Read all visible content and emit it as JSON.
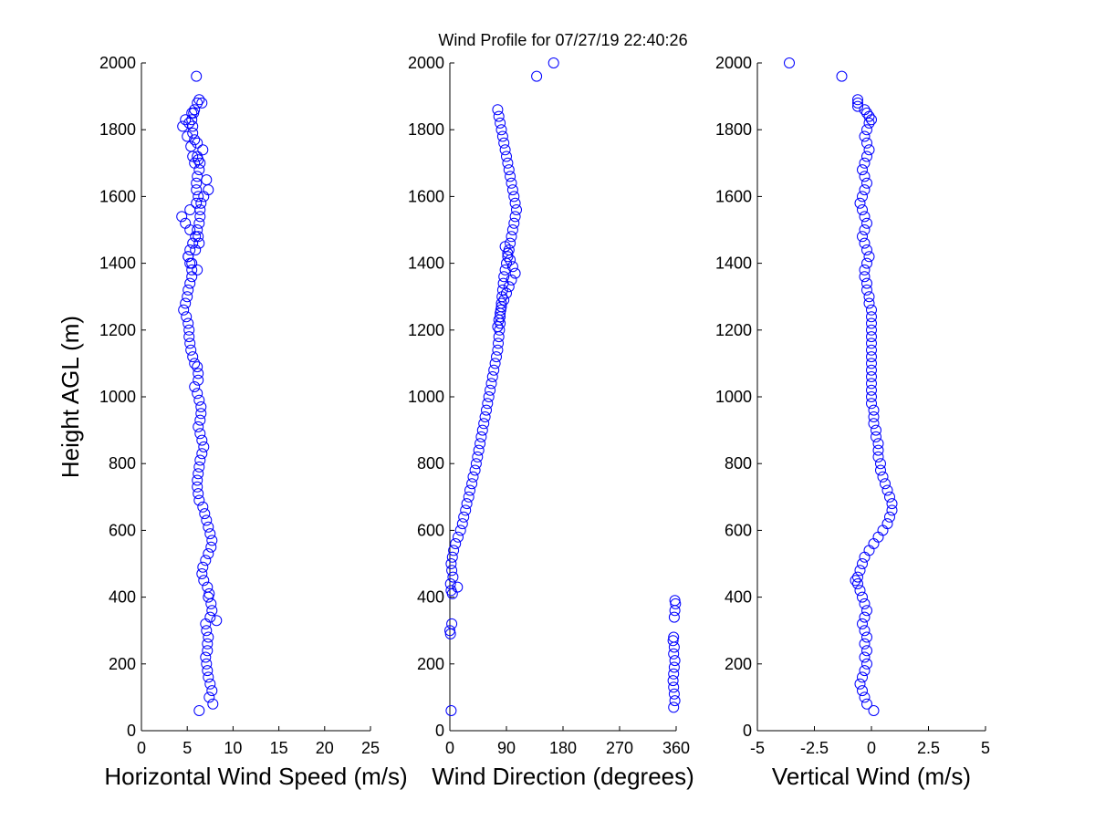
{
  "title": "Wind Profile for  07/27/19 22:40:26",
  "chart_data": [
    {
      "type": "scatter",
      "xlabel": "Horizontal Wind Speed (m/s)",
      "ylabel": "Height AGL (m)",
      "xlim": [
        0,
        25
      ],
      "ylim": [
        0,
        2000
      ],
      "xticks": [
        0,
        5,
        10,
        15,
        20,
        25
      ],
      "xtick_labels": [
        "0",
        "5",
        "10",
        "15",
        "20",
        "25"
      ],
      "yticks": [
        0,
        200,
        400,
        600,
        800,
        1000,
        1200,
        1400,
        1600,
        1800,
        2000
      ],
      "ytick_labels": [
        "0",
        "200",
        "400",
        "600",
        "800",
        "1000",
        "1200",
        "1400",
        "1600",
        "1800",
        "2000"
      ],
      "marker_color": "#0000ff",
      "series": [
        {
          "name": "horizontal_wind_speed",
          "x": [
            6.3,
            7.8,
            7.4,
            7.7,
            7.5,
            7.3,
            7.2,
            7.1,
            7.0,
            7.2,
            7.2,
            7.3,
            7.1,
            7.0,
            7.5,
            7.7,
            8.2,
            7.6,
            7.3,
            7.4,
            7.2,
            6.8,
            6.6,
            6.7,
            7.0,
            7.3,
            7.6,
            7.7,
            7.5,
            7.3,
            7.1,
            6.9,
            6.7,
            6.3,
            6.2,
            6.1,
            6.1,
            6.2,
            6.3,
            6.4,
            6.6,
            6.8,
            6.6,
            6.4,
            6.2,
            6.4,
            6.5,
            6.5,
            6.3,
            6.1,
            5.8,
            6.2,
            6.2,
            6.1,
            5.8,
            5.6,
            5.4,
            5.3,
            5.2,
            5.2,
            5.1,
            4.9,
            4.6,
            4.8,
            5.0,
            5.1,
            5.3,
            5.5,
            5.5,
            5.3,
            5.1,
            5.3,
            5.6,
            5.9,
            6.1,
            6.3,
            6.4,
            6.4,
            6.5,
            6.2,
            6.0,
            6.0,
            6.1,
            6.3,
            6.4,
            6.2,
            6.1,
            6.7,
            6.1,
            5.8,
            5.6,
            5.6,
            5.5,
            5.7,
            5.8,
            6.1,
            6.3,
            6.0,
            5.8,
            5.6,
            5.4,
            5.2,
            5.0,
            4.5,
            4.8,
            5.5,
            6.6,
            7.1,
            7.3,
            6.8,
            6.0,
            5.3,
            4.4,
            4.8,
            5.3,
            6.2,
            6.3,
            5.9,
            5.1,
            5.5,
            6.1
          ],
          "y": [
            60,
            80,
            100,
            120,
            140,
            160,
            180,
            200,
            220,
            240,
            260,
            280,
            300,
            320,
            340,
            360,
            330,
            380,
            400,
            410,
            430,
            450,
            470,
            490,
            510,
            530,
            550,
            570,
            590,
            610,
            630,
            650,
            670,
            690,
            710,
            730,
            750,
            770,
            790,
            810,
            830,
            850,
            870,
            890,
            910,
            930,
            950,
            970,
            990,
            1010,
            1030,
            1050,
            1070,
            1090,
            1100,
            1120,
            1140,
            1160,
            1180,
            1200,
            1220,
            1240,
            1260,
            1280,
            1300,
            1320,
            1340,
            1360,
            1380,
            1400,
            1420,
            1440,
            1460,
            1480,
            1500,
            1520,
            1540,
            1560,
            1580,
            1600,
            1620,
            1640,
            1660,
            1680,
            1700,
            1710,
            1720,
            1740,
            1760,
            1770,
            1790,
            1810,
            1830,
            1850,
            1860,
            1880,
            1890,
            1960,
            1700,
            1720,
            1750,
            1820,
            1780,
            1810,
            1830,
            1850,
            1880,
            1650,
            1620,
            1600,
            1580,
            1560,
            1540,
            1520,
            1500,
            1480,
            1460,
            1440,
            1420,
            1400,
            1380
          ]
        }
      ]
    },
    {
      "type": "scatter",
      "xlabel": "Wind Direction (degrees)",
      "ylabel": "",
      "xlim": [
        0,
        360
      ],
      "ylim": [
        0,
        2000
      ],
      "xticks": [
        0,
        90,
        180,
        270,
        360
      ],
      "xtick_labels": [
        "0",
        "90",
        "180",
        "270",
        "360"
      ],
      "yticks": [
        0,
        200,
        400,
        600,
        800,
        1000,
        1200,
        1400,
        1600,
        1800,
        2000
      ],
      "ytick_labels": [
        "0",
        "200",
        "400",
        "600",
        "800",
        "1000",
        "1200",
        "1400",
        "1600",
        "1800",
        "2000"
      ],
      "marker_color": "#0000ff",
      "series": [
        {
          "name": "wind_direction",
          "x": [
            2,
            1,
            0,
            3,
            4,
            2,
            1,
            5,
            3,
            2,
            4,
            12,
            6,
            9,
            13,
            17,
            20,
            22,
            25,
            27,
            30,
            32,
            35,
            37,
            40,
            42,
            44,
            46,
            48,
            50,
            52,
            54,
            56,
            58,
            60,
            62,
            64,
            66,
            68,
            70,
            72,
            74,
            76,
            77,
            78,
            79,
            80,
            80,
            81,
            82,
            83,
            84,
            85,
            86,
            88,
            90,
            92,
            94,
            96,
            98,
            100,
            102,
            104,
            106,
            104,
            102,
            100,
            98,
            96,
            94,
            92,
            90,
            88,
            86,
            84,
            82,
            80,
            78,
            76,
            88,
            92,
            96,
            100,
            104,
            98,
            94,
            90,
            86,
            82,
            80,
            78,
            76,
            138,
            165,
            356,
            358,
            357,
            356,
            355,
            356,
            357,
            358,
            356,
            357,
            355,
            356,
            357,
            358,
            359,
            358
          ],
          "y": [
            60,
            290,
            300,
            320,
            410,
            420,
            440,
            460,
            480,
            500,
            520,
            430,
            540,
            560,
            580,
            600,
            620,
            640,
            660,
            680,
            700,
            720,
            740,
            760,
            780,
            800,
            820,
            840,
            860,
            880,
            900,
            920,
            940,
            960,
            980,
            1000,
            1020,
            1040,
            1060,
            1080,
            1100,
            1120,
            1140,
            1160,
            1180,
            1200,
            1220,
            1240,
            1260,
            1280,
            1300,
            1320,
            1340,
            1360,
            1380,
            1400,
            1420,
            1440,
            1460,
            1480,
            1500,
            1520,
            1540,
            1560,
            1580,
            1600,
            1620,
            1640,
            1660,
            1680,
            1700,
            1720,
            1740,
            1760,
            1780,
            1800,
            1820,
            1840,
            1860,
            1450,
            1430,
            1410,
            1390,
            1370,
            1350,
            1330,
            1310,
            1290,
            1270,
            1250,
            1230,
            1210,
            1960,
            2000,
            70,
            90,
            110,
            130,
            150,
            170,
            190,
            210,
            230,
            250,
            270,
            280,
            340,
            360,
            380,
            390
          ]
        }
      ]
    },
    {
      "type": "scatter",
      "xlabel": "Vertical Wind (m/s)",
      "ylabel": "",
      "xlim": [
        -5,
        5
      ],
      "ylim": [
        0,
        2000
      ],
      "xticks": [
        -5,
        -2.5,
        0,
        2.5,
        5
      ],
      "xtick_labels": [
        "-5",
        "-2.5",
        "0",
        "2.5",
        "5"
      ],
      "yticks": [
        0,
        200,
        400,
        600,
        800,
        1000,
        1200,
        1400,
        1600,
        1800,
        2000
      ],
      "ytick_labels": [
        "0",
        "200",
        "400",
        "600",
        "800",
        "1000",
        "1200",
        "1400",
        "1600",
        "1800",
        "2000"
      ],
      "marker_color": "#0000ff",
      "series": [
        {
          "name": "vertical_wind",
          "x": [
            0.1,
            -0.2,
            -0.3,
            -0.4,
            -0.5,
            -0.4,
            -0.3,
            -0.2,
            -0.3,
            -0.2,
            -0.3,
            -0.2,
            -0.3,
            -0.4,
            -0.3,
            -0.2,
            -0.3,
            -0.4,
            -0.5,
            -0.6,
            -0.7,
            -0.6,
            -0.5,
            -0.4,
            -0.3,
            -0.1,
            0.1,
            0.3,
            0.5,
            0.7,
            0.8,
            0.9,
            0.9,
            0.8,
            0.7,
            0.6,
            0.5,
            0.4,
            0.4,
            0.3,
            0.3,
            0.3,
            0.2,
            0.2,
            0.1,
            0.1,
            0.1,
            0.0,
            0.0,
            0.0,
            0.0,
            0.0,
            0.0,
            0.0,
            0.0,
            0.0,
            0.0,
            0.0,
            0.0,
            0.0,
            0.0,
            0.0,
            -0.1,
            -0.1,
            -0.2,
            -0.2,
            -0.3,
            -0.3,
            -0.2,
            -0.1,
            -0.2,
            -0.3,
            -0.4,
            -0.3,
            -0.2,
            -0.3,
            -0.4,
            -0.5,
            -0.4,
            -0.3,
            -0.2,
            -0.3,
            -0.4,
            -0.3,
            -0.2,
            -0.1,
            -0.2,
            -0.3,
            -0.2,
            -0.1,
            0.0,
            -0.1,
            -0.2,
            -0.3,
            -0.6,
            -0.6,
            -0.6,
            -1.3,
            -3.6
          ],
          "y": [
            60,
            80,
            100,
            120,
            140,
            160,
            180,
            200,
            220,
            240,
            260,
            280,
            300,
            320,
            340,
            360,
            380,
            400,
            420,
            440,
            450,
            460,
            480,
            500,
            520,
            540,
            560,
            580,
            600,
            620,
            640,
            660,
            680,
            700,
            720,
            740,
            760,
            780,
            800,
            820,
            840,
            860,
            880,
            900,
            920,
            940,
            960,
            980,
            1000,
            1020,
            1040,
            1060,
            1080,
            1100,
            1120,
            1140,
            1160,
            1180,
            1200,
            1220,
            1240,
            1260,
            1280,
            1300,
            1320,
            1340,
            1360,
            1380,
            1400,
            1420,
            1440,
            1460,
            1480,
            1500,
            1520,
            1540,
            1560,
            1580,
            1600,
            1620,
            1640,
            1660,
            1680,
            1700,
            1720,
            1740,
            1760,
            1780,
            1800,
            1820,
            1830,
            1840,
            1850,
            1860,
            1880,
            1890,
            1870,
            1960,
            2000
          ]
        }
      ]
    }
  ]
}
